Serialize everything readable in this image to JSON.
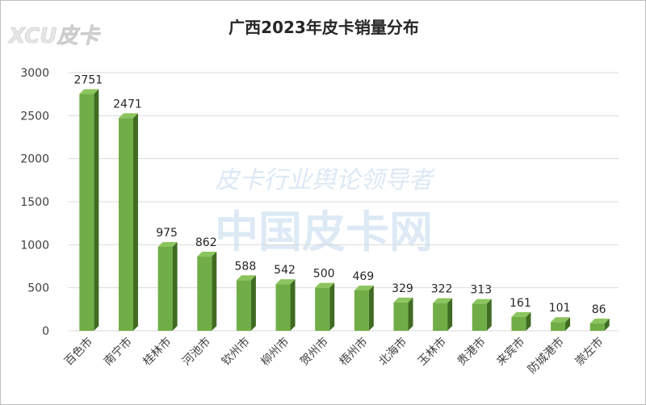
{
  "logo": {
    "text": "XCU皮卡"
  },
  "watermark": {
    "line1": "皮卡行业舆论领导者",
    "line2": "中国皮卡网"
  },
  "colors": {
    "bar_front": "#70ad47",
    "bar_side": "#3f6b22",
    "bar_top": "#8cc45e",
    "grid": "#d9d9d9",
    "text": "#404040"
  },
  "chart_data": {
    "type": "bar",
    "title": "广西2023年皮卡销量分布",
    "xlabel": "",
    "ylabel": "",
    "categories": [
      "百色市",
      "南宁市",
      "桂林市",
      "河池市",
      "钦州市",
      "柳州市",
      "贺州市",
      "梧州市",
      "北海市",
      "玉林市",
      "贵港市",
      "来宾市",
      "防城港市",
      "崇左市"
    ],
    "values": [
      2751,
      2471,
      975,
      862,
      588,
      542,
      500,
      469,
      329,
      322,
      313,
      161,
      101,
      86
    ],
    "ylim": [
      0,
      3000
    ],
    "yticks": [
      0,
      500,
      1000,
      1500,
      2000,
      2500,
      3000
    ],
    "grid": true,
    "legend": "none"
  }
}
